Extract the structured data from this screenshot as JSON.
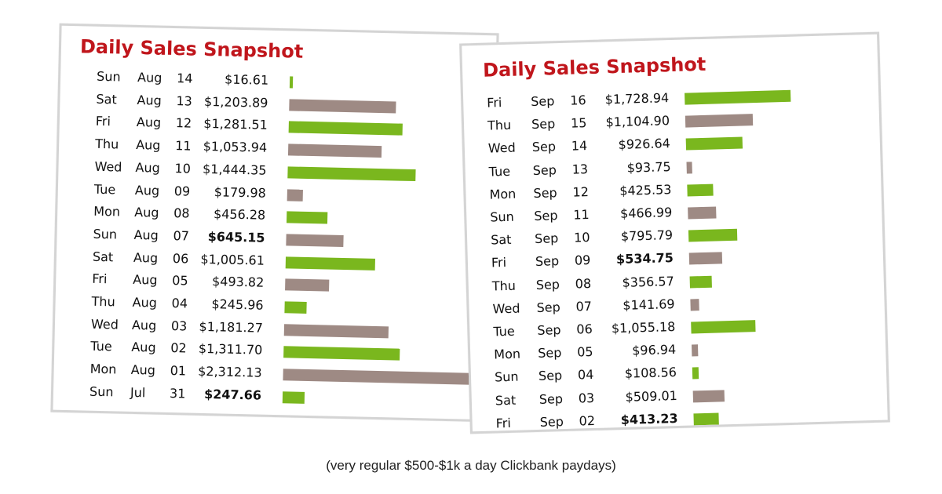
{
  "colors": {
    "title": "#c0161c",
    "green": "#7ab71e",
    "brown": "#9e8a84"
  },
  "caption": "(very regular $500-$1k a day Clickbank paydays)",
  "chart_data": [
    {
      "type": "bar",
      "title": "Daily Sales Snapshot",
      "orientation": "horizontal",
      "columns": [
        "day",
        "month",
        "date",
        "amount"
      ],
      "rows": [
        {
          "day": "Sun",
          "month": "Aug",
          "date": "14",
          "amount": "$16.61",
          "value": 16.61,
          "color": "green",
          "bold": false
        },
        {
          "day": "Sat",
          "month": "Aug",
          "date": "13",
          "amount": "$1,203.89",
          "value": 1203.89,
          "color": "brown",
          "bold": false
        },
        {
          "day": "Fri",
          "month": "Aug",
          "date": "12",
          "amount": "$1,281.51",
          "value": 1281.51,
          "color": "green",
          "bold": false
        },
        {
          "day": "Thu",
          "month": "Aug",
          "date": "11",
          "amount": "$1,053.94",
          "value": 1053.94,
          "color": "brown",
          "bold": false
        },
        {
          "day": "Wed",
          "month": "Aug",
          "date": "10",
          "amount": "$1,444.35",
          "value": 1444.35,
          "color": "green",
          "bold": false
        },
        {
          "day": "Tue",
          "month": "Aug",
          "date": "09",
          "amount": "$179.98",
          "value": 179.98,
          "color": "brown",
          "bold": false
        },
        {
          "day": "Mon",
          "month": "Aug",
          "date": "08",
          "amount": "$456.28",
          "value": 456.28,
          "color": "green",
          "bold": false
        },
        {
          "day": "Sun",
          "month": "Aug",
          "date": "07",
          "amount": "$645.15",
          "value": 645.15,
          "color": "brown",
          "bold": true
        },
        {
          "day": "Sat",
          "month": "Aug",
          "date": "06",
          "amount": "$1,005.61",
          "value": 1005.61,
          "color": "green",
          "bold": false
        },
        {
          "day": "Fri",
          "month": "Aug",
          "date": "05",
          "amount": "$493.82",
          "value": 493.82,
          "color": "brown",
          "bold": false
        },
        {
          "day": "Thu",
          "month": "Aug",
          "date": "04",
          "amount": "$245.96",
          "value": 245.96,
          "color": "green",
          "bold": false
        },
        {
          "day": "Wed",
          "month": "Aug",
          "date": "03",
          "amount": "$1,181.27",
          "value": 1181.27,
          "color": "brown",
          "bold": false
        },
        {
          "day": "Tue",
          "month": "Aug",
          "date": "02",
          "amount": "$1,311.70",
          "value": 1311.7,
          "color": "green",
          "bold": false
        },
        {
          "day": "Mon",
          "month": "Aug",
          "date": "01",
          "amount": "$2,312.13",
          "value": 2312.13,
          "color": "brown",
          "bold": false
        },
        {
          "day": "Sun",
          "month": "Jul",
          "date": "31",
          "amount": "$247.66",
          "value": 247.66,
          "color": "green",
          "bold": true
        }
      ]
    },
    {
      "type": "bar",
      "title": "Daily Sales Snapshot",
      "orientation": "horizontal",
      "columns": [
        "day",
        "month",
        "date",
        "amount"
      ],
      "rows": [
        {
          "day": "Fri",
          "month": "Sep",
          "date": "16",
          "amount": "$1,728.94",
          "value": 1728.94,
          "color": "green",
          "bold": false
        },
        {
          "day": "Thu",
          "month": "Sep",
          "date": "15",
          "amount": "$1,104.90",
          "value": 1104.9,
          "color": "brown",
          "bold": false
        },
        {
          "day": "Wed",
          "month": "Sep",
          "date": "14",
          "amount": "$926.64",
          "value": 926.64,
          "color": "green",
          "bold": false
        },
        {
          "day": "Tue",
          "month": "Sep",
          "date": "13",
          "amount": "$93.75",
          "value": 93.75,
          "color": "brown",
          "bold": false
        },
        {
          "day": "Mon",
          "month": "Sep",
          "date": "12",
          "amount": "$425.53",
          "value": 425.53,
          "color": "green",
          "bold": false
        },
        {
          "day": "Sun",
          "month": "Sep",
          "date": "11",
          "amount": "$466.99",
          "value": 466.99,
          "color": "brown",
          "bold": false
        },
        {
          "day": "Sat",
          "month": "Sep",
          "date": "10",
          "amount": "$795.79",
          "value": 795.79,
          "color": "green",
          "bold": false
        },
        {
          "day": "Fri",
          "month": "Sep",
          "date": "09",
          "amount": "$534.75",
          "value": 534.75,
          "color": "brown",
          "bold": true
        },
        {
          "day": "Thu",
          "month": "Sep",
          "date": "08",
          "amount": "$356.57",
          "value": 356.57,
          "color": "green",
          "bold": false
        },
        {
          "day": "Wed",
          "month": "Sep",
          "date": "07",
          "amount": "$141.69",
          "value": 141.69,
          "color": "brown",
          "bold": false
        },
        {
          "day": "Tue",
          "month": "Sep",
          "date": "06",
          "amount": "$1,055.18",
          "value": 1055.18,
          "color": "green",
          "bold": false
        },
        {
          "day": "Mon",
          "month": "Sep",
          "date": "05",
          "amount": "$96.94",
          "value": 96.94,
          "color": "brown",
          "bold": false
        },
        {
          "day": "Sun",
          "month": "Sep",
          "date": "04",
          "amount": "$108.56",
          "value": 108.56,
          "color": "green",
          "bold": false
        },
        {
          "day": "Sat",
          "month": "Sep",
          "date": "03",
          "amount": "$509.01",
          "value": 509.01,
          "color": "brown",
          "bold": false
        },
        {
          "day": "Fri",
          "month": "Sep",
          "date": "02",
          "amount": "$413.23",
          "value": 413.23,
          "color": "green",
          "bold": true
        }
      ]
    }
  ]
}
